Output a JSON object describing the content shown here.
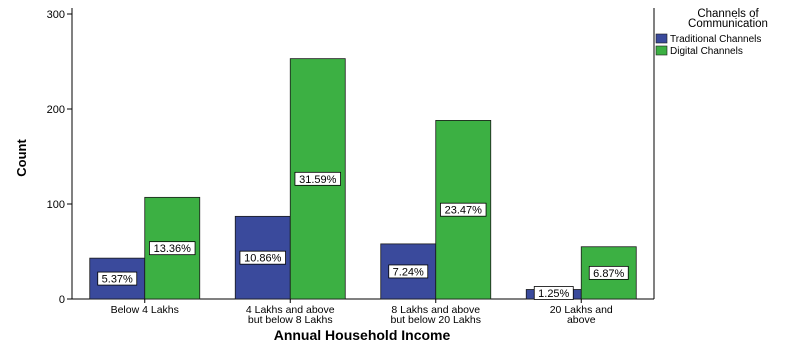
{
  "chart_data": {
    "type": "bar",
    "xlabel": "Annual Household Income",
    "ylabel": "Count",
    "ylim": [
      0,
      300
    ],
    "yticks": [
      0,
      100,
      200,
      300
    ],
    "grid": false,
    "legend_position": "top-right",
    "legend_title_lines": [
      "Channels of",
      "Communication"
    ],
    "categories": [
      [
        "Below 4 Lakhs"
      ],
      [
        "4 Lakhs and above",
        "but below 8 Lakhs"
      ],
      [
        "8 Lakhs and above",
        "but below 20 Lakhs"
      ],
      [
        "20 Lakhs and",
        "above"
      ]
    ],
    "series": [
      {
        "name": "Traditional Channels",
        "color": "#3a4a9c",
        "values": [
          43,
          87,
          58,
          10
        ],
        "labels": [
          "5.37%",
          "10.86%",
          "7.24%",
          "1.25%"
        ]
      },
      {
        "name": "Digital Channels",
        "color": "#3cb043",
        "values": [
          107,
          253,
          188,
          55
        ],
        "labels": [
          "13.36%",
          "31.59%",
          "23.47%",
          "6.87%"
        ]
      }
    ]
  }
}
